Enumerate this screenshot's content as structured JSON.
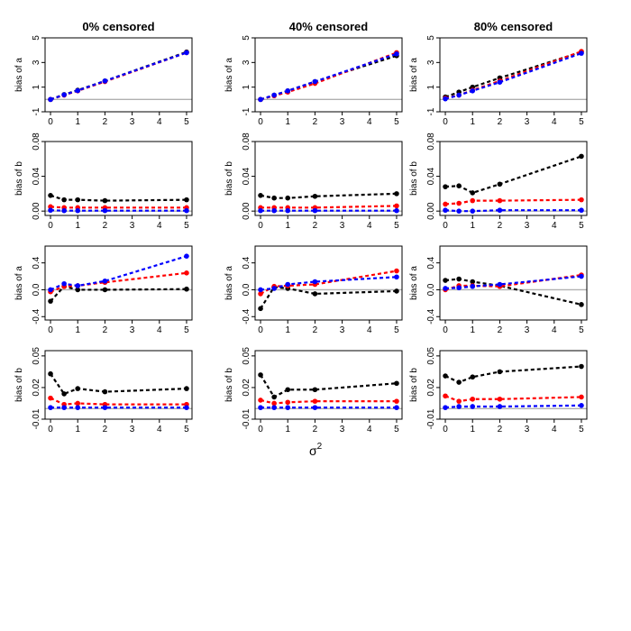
{
  "figure": {
    "x_axis_label": "σ",
    "x_axis_superscript": "2"
  },
  "chart_data": {
    "type": "line",
    "columns": [
      "0% censored",
      "40% censored",
      "80% censored"
    ],
    "x": [
      0,
      0.5,
      1,
      2,
      5
    ],
    "xticks": [
      "0",
      "1",
      "2",
      "3",
      "4",
      "5"
    ],
    "xtick_values": [
      0,
      1,
      2,
      3,
      4,
      5
    ],
    "xlim": [
      -0.2,
      5.2
    ],
    "series_colors": {
      "black": "#000000",
      "red": "#ff0000",
      "blue": "#0000ff"
    },
    "reference_line_color": "#b0b0b0",
    "rows": [
      {
        "ylabel": "bias of a",
        "ylim": [
          -1,
          5
        ],
        "yticks": [
          "-1",
          "1",
          "3",
          "5"
        ],
        "ytick_values": [
          -1,
          1,
          3,
          5
        ],
        "ref": 0,
        "panels": [
          {
            "series": [
              {
                "name": "black",
                "values": [
                  0.0,
                  0.4,
                  0.75,
                  1.5,
                  3.85
                ]
              },
              {
                "name": "red",
                "values": [
                  0.0,
                  0.35,
                  0.7,
                  1.45,
                  3.8
                ]
              },
              {
                "name": "blue",
                "values": [
                  0.0,
                  0.38,
                  0.72,
                  1.5,
                  3.8
                ]
              }
            ]
          },
          {
            "series": [
              {
                "name": "black",
                "values": [
                  0.0,
                  0.35,
                  0.7,
                  1.45,
                  3.55
                ]
              },
              {
                "name": "red",
                "values": [
                  0.0,
                  0.3,
                  0.6,
                  1.3,
                  3.8
                ]
              },
              {
                "name": "blue",
                "values": [
                  0.0,
                  0.35,
                  0.7,
                  1.45,
                  3.7
                ]
              }
            ]
          },
          {
            "series": [
              {
                "name": "black",
                "values": [
                  0.2,
                  0.6,
                  1.0,
                  1.75,
                  3.85
                ]
              },
              {
                "name": "red",
                "values": [
                  0.1,
                  0.35,
                  0.75,
                  1.5,
                  3.9
                ]
              },
              {
                "name": "blue",
                "values": [
                  0.05,
                  0.35,
                  0.7,
                  1.4,
                  3.75
                ]
              }
            ]
          }
        ]
      },
      {
        "ylabel": "bias of b",
        "ylim": [
          -0.005,
          0.08
        ],
        "yticks": [
          "0.00",
          "0.04",
          "0.08"
        ],
        "ytick_values": [
          0,
          0.04,
          0.08
        ],
        "ref": 0,
        "panels": [
          {
            "series": [
              {
                "name": "black",
                "values": [
                  0.018,
                  0.013,
                  0.013,
                  0.012,
                  0.013
                ]
              },
              {
                "name": "red",
                "values": [
                  0.005,
                  0.004,
                  0.004,
                  0.004,
                  0.004
                ]
              },
              {
                "name": "blue",
                "values": [
                  0.001,
                  0.0005,
                  0.0005,
                  0.0005,
                  0.0005
                ]
              }
            ]
          },
          {
            "series": [
              {
                "name": "black",
                "values": [
                  0.018,
                  0.015,
                  0.015,
                  0.017,
                  0.02
                ]
              },
              {
                "name": "red",
                "values": [
                  0.004,
                  0.004,
                  0.004,
                  0.004,
                  0.006
                ]
              },
              {
                "name": "blue",
                "values": [
                  0.0005,
                  0.0005,
                  0.0005,
                  0.0005,
                  0.0005
                ]
              }
            ]
          },
          {
            "series": [
              {
                "name": "black",
                "values": [
                  0.028,
                  0.029,
                  0.021,
                  0.031,
                  0.063
                ]
              },
              {
                "name": "red",
                "values": [
                  0.008,
                  0.009,
                  0.012,
                  0.012,
                  0.013
                ]
              },
              {
                "name": "blue",
                "values": [
                  0.001,
                  0.0,
                  0.0,
                  0.001,
                  0.001
                ]
              }
            ]
          }
        ]
      },
      {
        "ylabel": "bias of a",
        "ylim": [
          -0.45,
          0.65
        ],
        "yticks": [
          "-0.4",
          "0.0",
          "0.4"
        ],
        "ytick_values": [
          -0.4,
          0,
          0.4
        ],
        "ref": 0,
        "panels": [
          {
            "series": [
              {
                "name": "black",
                "values": [
                  -0.17,
                  0.05,
                  0.0,
                  0.0,
                  0.01
                ]
              },
              {
                "name": "red",
                "values": [
                  -0.03,
                  0.05,
                  0.06,
                  0.11,
                  0.25
                ]
              },
              {
                "name": "blue",
                "values": [
                  0.0,
                  0.09,
                  0.06,
                  0.13,
                  0.5
                ]
              }
            ]
          },
          {
            "series": [
              {
                "name": "black",
                "values": [
                  -0.28,
                  0.04,
                  0.02,
                  -0.06,
                  -0.02
                ]
              },
              {
                "name": "red",
                "values": [
                  -0.06,
                  0.05,
                  0.06,
                  0.08,
                  0.28
                ]
              },
              {
                "name": "blue",
                "values": [
                  0.0,
                  0.02,
                  0.08,
                  0.12,
                  0.19
                ]
              }
            ]
          },
          {
            "series": [
              {
                "name": "black",
                "values": [
                  0.14,
                  0.16,
                  0.12,
                  0.06,
                  -0.22
                ]
              },
              {
                "name": "red",
                "values": [
                  0.0,
                  0.06,
                  0.06,
                  0.05,
                  0.22
                ]
              },
              {
                "name": "blue",
                "values": [
                  0.02,
                  0.03,
                  0.05,
                  0.08,
                  0.2
                ]
              }
            ]
          }
        ]
      },
      {
        "ylabel": "bias of b",
        "ylim": [
          -0.01,
          0.055
        ],
        "yticks": [
          "-0.01",
          "0.02",
          "0.05"
        ],
        "ytick_values": [
          -0.01,
          0.02,
          0.05
        ],
        "ref": 0,
        "panels": [
          {
            "series": [
              {
                "name": "black",
                "values": [
                  0.033,
                  0.014,
                  0.019,
                  0.016,
                  0.019
                ]
              },
              {
                "name": "red",
                "values": [
                  0.01,
                  0.004,
                  0.005,
                  0.004,
                  0.004
                ]
              },
              {
                "name": "blue",
                "values": [
                  0.001,
                  0.001,
                  0.001,
                  0.001,
                  0.001
                ]
              }
            ]
          },
          {
            "series": [
              {
                "name": "black",
                "values": [
                  0.032,
                  0.011,
                  0.018,
                  0.018,
                  0.024
                ]
              },
              {
                "name": "red",
                "values": [
                  0.008,
                  0.005,
                  0.006,
                  0.007,
                  0.007
                ]
              },
              {
                "name": "blue",
                "values": [
                  0.001,
                  0.001,
                  0.001,
                  0.001,
                  0.001
                ]
              }
            ]
          },
          {
            "series": [
              {
                "name": "black",
                "values": [
                  0.031,
                  0.025,
                  0.03,
                  0.035,
                  0.04
                ]
              },
              {
                "name": "red",
                "values": [
                  0.012,
                  0.007,
                  0.009,
                  0.009,
                  0.011
                ]
              },
              {
                "name": "blue",
                "values": [
                  0.001,
                  0.002,
                  0.002,
                  0.002,
                  0.003
                ]
              }
            ]
          }
        ]
      }
    ]
  }
}
